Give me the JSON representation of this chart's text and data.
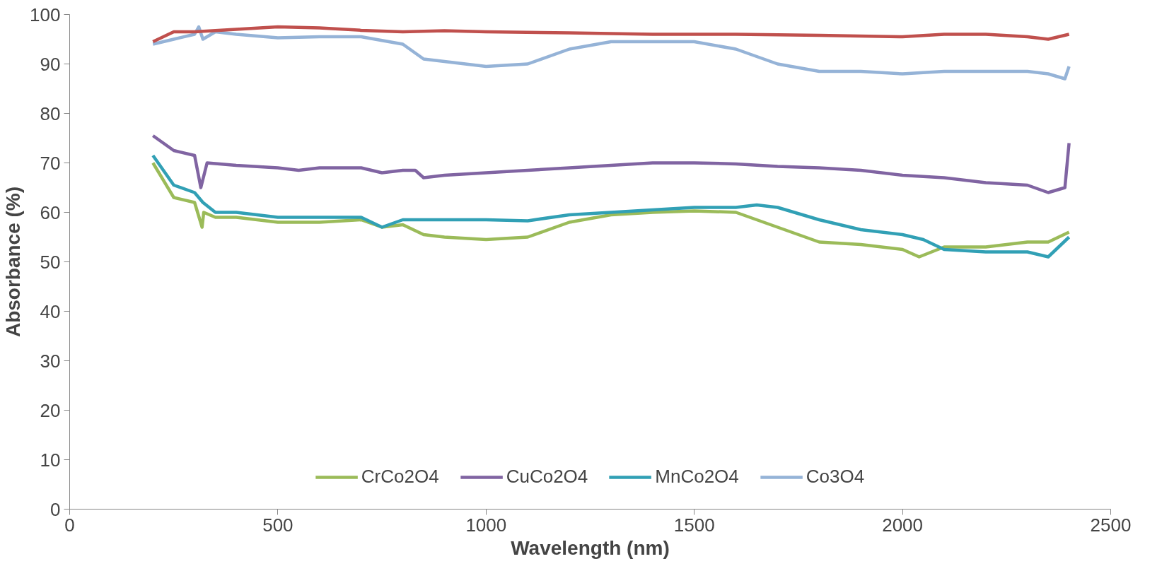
{
  "chart_data": {
    "type": "line",
    "xlabel": "Wavelength (nm)",
    "ylabel": "Absorbance (%)",
    "xlim": [
      0,
      2500
    ],
    "xticks": [
      0,
      500,
      1000,
      1500,
      2000,
      2500
    ],
    "ylim": [
      0,
      100
    ],
    "yticks": [
      0,
      10,
      20,
      30,
      40,
      50,
      60,
      70,
      80,
      90,
      100
    ],
    "grid": false,
    "legend": "bottom",
    "marker": "none",
    "line_style": "solid",
    "series": [
      {
        "name": "CrCo2O4",
        "color": "#9bbb59",
        "x": [
          200,
          250,
          300,
          318,
          322,
          350,
          400,
          500,
          600,
          700,
          750,
          800,
          850,
          900,
          1000,
          1100,
          1200,
          1300,
          1400,
          1500,
          1600,
          1700,
          1800,
          1900,
          2000,
          2040,
          2100,
          2200,
          2300,
          2350,
          2400
        ],
        "values": [
          70,
          63,
          62,
          57,
          60,
          59,
          59,
          58,
          58,
          58.5,
          57,
          57.5,
          55.5,
          55,
          54.5,
          55,
          58,
          59.5,
          60,
          60.3,
          60,
          57,
          54,
          53.5,
          52.5,
          51,
          53,
          53,
          54,
          54,
          56
        ]
      },
      {
        "name": "CuCo2O4",
        "color": "#8064a2",
        "x": [
          200,
          250,
          300,
          315,
          330,
          400,
          500,
          550,
          600,
          700,
          750,
          800,
          830,
          850,
          900,
          1000,
          1100,
          1200,
          1300,
          1400,
          1500,
          1600,
          1700,
          1800,
          1900,
          2000,
          2100,
          2200,
          2300,
          2350,
          2390,
          2400
        ],
        "values": [
          75.5,
          72.5,
          71.5,
          65,
          70,
          69.5,
          69,
          68.5,
          69,
          69,
          68,
          68.5,
          68.5,
          67,
          67.5,
          68,
          68.5,
          69,
          69.5,
          70,
          70,
          69.8,
          69.3,
          69,
          68.5,
          67.5,
          67,
          66,
          65.5,
          64,
          65,
          74
        ]
      },
      {
        "name": "MnCo2O4",
        "color": "#31a0b5",
        "x": [
          200,
          250,
          300,
          320,
          350,
          400,
          500,
          600,
          700,
          750,
          800,
          900,
          1000,
          1100,
          1200,
          1300,
          1400,
          1500,
          1600,
          1650,
          1700,
          1800,
          1900,
          2000,
          2050,
          2100,
          2200,
          2300,
          2350,
          2400
        ],
        "values": [
          71.5,
          65.5,
          64,
          62,
          60,
          60,
          59,
          59,
          59,
          57,
          58.5,
          58.5,
          58.5,
          58.3,
          59.5,
          60,
          60.5,
          61,
          61,
          61.5,
          61,
          58.5,
          56.5,
          55.5,
          54.5,
          52.5,
          52,
          52,
          51,
          55
        ]
      },
      {
        "name": "Co3O4",
        "color": "#95b3d7",
        "x": [
          200,
          250,
          300,
          310,
          320,
          350,
          400,
          500,
          600,
          700,
          800,
          850,
          900,
          1000,
          1100,
          1200,
          1300,
          1400,
          1500,
          1600,
          1700,
          1800,
          1900,
          2000,
          2100,
          2200,
          2300,
          2350,
          2390,
          2400
        ],
        "values": [
          94,
          95,
          96,
          97.5,
          95,
          96.5,
          96,
          95.3,
          95.5,
          95.5,
          94,
          91,
          90.5,
          89.5,
          90,
          93,
          94.5,
          94.5,
          94.5,
          93,
          90,
          88.5,
          88.5,
          88,
          88.5,
          88.5,
          88.5,
          88,
          87,
          89.5
        ]
      },
      {
        "color": "#c0504d",
        "x": [
          200,
          250,
          300,
          400,
          500,
          600,
          700,
          800,
          900,
          1000,
          1200,
          1400,
          1600,
          1800,
          2000,
          2100,
          2200,
          2300,
          2350,
          2400
        ],
        "values": [
          94.5,
          96.5,
          96.5,
          97,
          97.5,
          97.3,
          96.8,
          96.5,
          96.7,
          96.5,
          96.3,
          96,
          96,
          95.8,
          95.5,
          96,
          96,
          95.5,
          95,
          96
        ]
      }
    ]
  }
}
